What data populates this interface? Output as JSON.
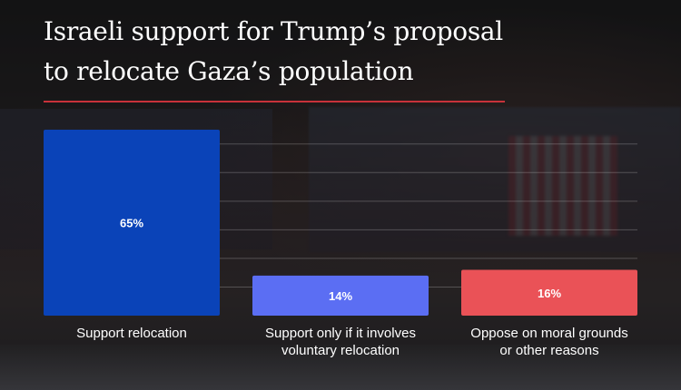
{
  "header": {
    "title_line1": "Israeli support for Trump’s proposal",
    "title_line2": "to relocate Gaza’s population"
  },
  "chart_data": {
    "type": "bar",
    "title": "Israeli support for Trump’s proposal to relocate Gaza’s population",
    "xlabel": "",
    "ylabel": "",
    "categories": [
      [
        "Support relocation"
      ],
      [
        "Support only if it involves",
        "voluntary relocation"
      ],
      [
        "Oppose on moral grounds",
        "or other reasons"
      ]
    ],
    "values": [
      65,
      14,
      16
    ],
    "value_labels": [
      "65%",
      "14%",
      "16%"
    ],
    "colors": [
      "#0a43b8",
      "#5b6ef3",
      "#ea5257"
    ],
    "ylim": [
      0,
      70
    ],
    "grid": true,
    "legend": "none"
  }
}
